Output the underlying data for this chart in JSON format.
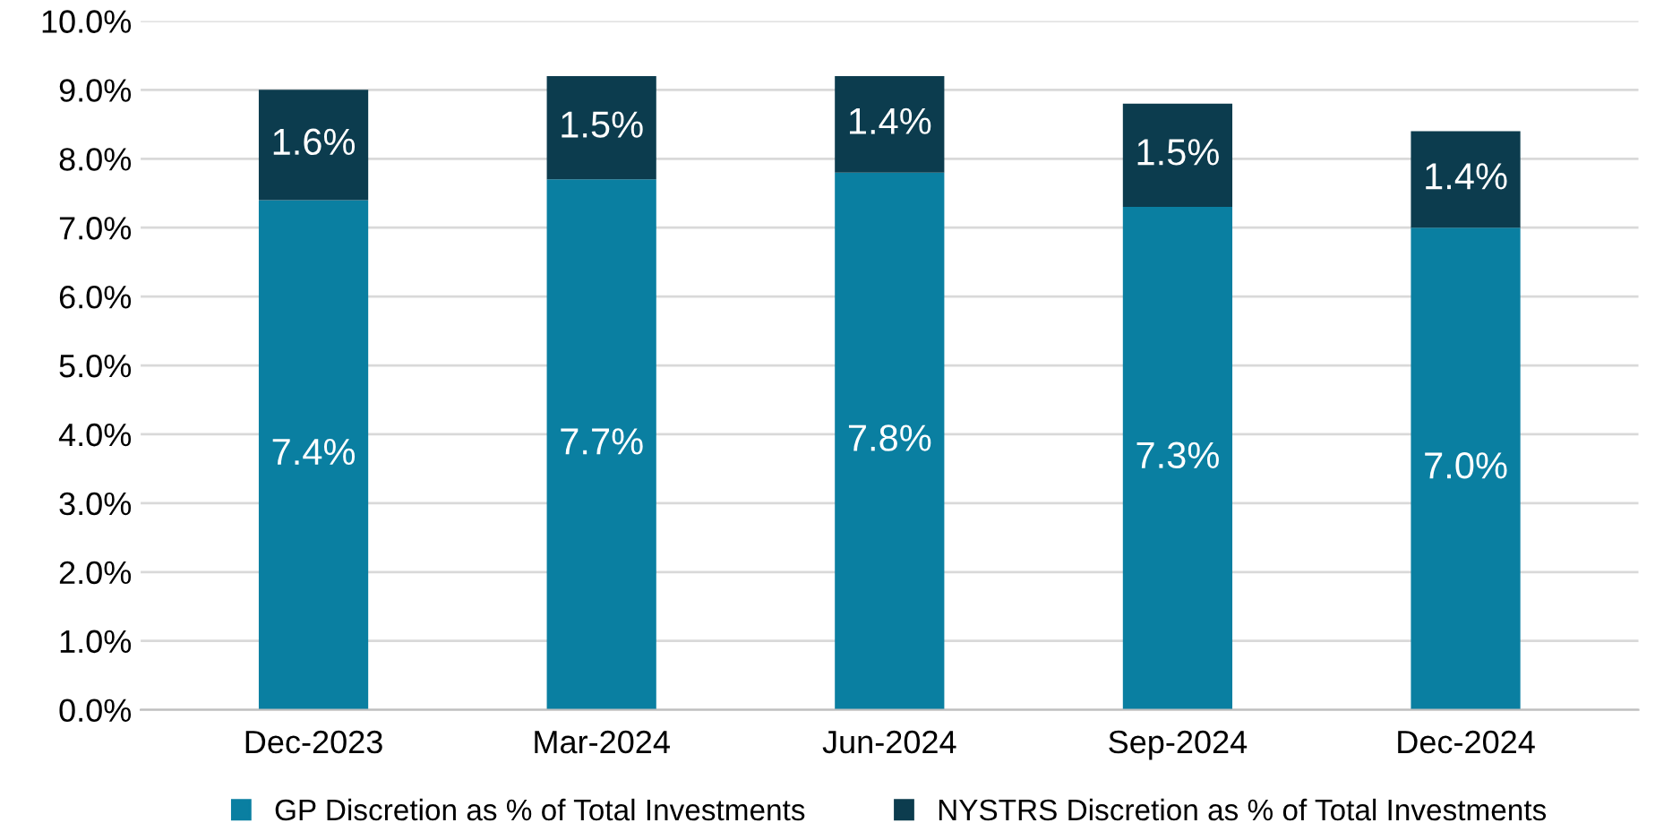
{
  "chart_data": {
    "type": "bar",
    "stacked": true,
    "categories": [
      "Dec-2023",
      "Mar-2024",
      "Jun-2024",
      "Sep-2024",
      "Dec-2024"
    ],
    "series": [
      {
        "name": "GP Discretion as % of Total Investments",
        "color": "#0a7fa1",
        "values": [
          7.4,
          7.7,
          7.8,
          7.3,
          7.0
        ],
        "value_labels": [
          "7.4%",
          "7.7%",
          "7.8%",
          "7.3%",
          "7.0%"
        ]
      },
      {
        "name": "NYSTRS Discretion as % of Total Investments",
        "color": "#0c3c4e",
        "values": [
          1.6,
          1.5,
          1.4,
          1.5,
          1.4
        ],
        "value_labels": [
          "1.6%",
          "1.5%",
          "1.4%",
          "1.5%",
          "1.4%"
        ]
      }
    ],
    "ylim": [
      0,
      10
    ],
    "yticks": [
      {
        "value": 0,
        "label": "0.0%"
      },
      {
        "value": 1,
        "label": "1.0%"
      },
      {
        "value": 2,
        "label": "2.0%"
      },
      {
        "value": 3,
        "label": "3.0%"
      },
      {
        "value": 4,
        "label": "4.0%"
      },
      {
        "value": 5,
        "label": "5.0%"
      },
      {
        "value": 6,
        "label": "6.0%"
      },
      {
        "value": 7,
        "label": "7.0%"
      },
      {
        "value": 8,
        "label": "8.0%"
      },
      {
        "value": 9,
        "label": "9.0%"
      },
      {
        "value": 10,
        "label": "10.0%"
      }
    ],
    "grid": "y",
    "legend": "bottom"
  }
}
